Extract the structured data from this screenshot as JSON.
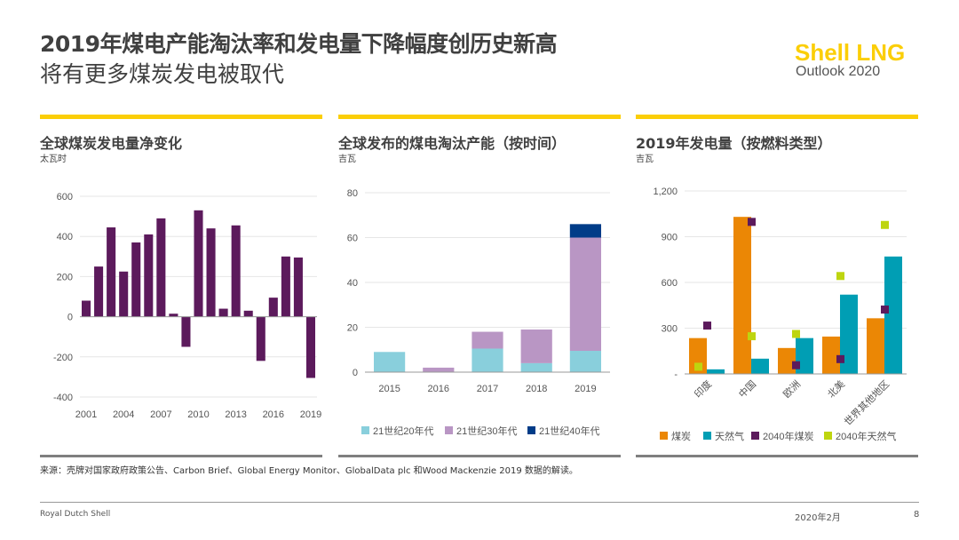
{
  "header": {
    "title": "2019年煤电产能淘汰率和发电量下降幅度创历史新高",
    "subtitle": "将有更多煤炭发电被取代",
    "logo_line1": "Shell LNG",
    "logo_line2": "Outlook 2020"
  },
  "colors": {
    "yellow": "#fbce07",
    "purple": "#5c1a5c",
    "orange": "#eb8705",
    "teal": "#009eb4",
    "lightblue": "#89cfdc",
    "lilac": "#b996c4",
    "navy": "#003c88",
    "lime": "#bed50f"
  },
  "chart_data": [
    {
      "type": "bar",
      "title": "全球煤炭发电量净变化",
      "unit": "太瓦时",
      "ylim": [
        -400,
        600
      ],
      "yticks": [
        "600",
        "400",
        "200",
        "0",
        "-200",
        "-400"
      ],
      "ytick_values": [
        600,
        400,
        200,
        0,
        -200,
        -400
      ],
      "categories": [
        "2001",
        "2002",
        "2003",
        "2004",
        "2005",
        "2006",
        "2007",
        "2008",
        "2009",
        "2010",
        "2011",
        "2012",
        "2013",
        "2014",
        "2015",
        "2016",
        "2017",
        "2018",
        "2019"
      ],
      "xtick_labels": [
        "2001",
        "2004",
        "2007",
        "2010",
        "2013",
        "2016",
        "2019"
      ],
      "values": [
        80,
        250,
        445,
        225,
        370,
        410,
        490,
        15,
        -150,
        530,
        440,
        40,
        455,
        30,
        -220,
        95,
        300,
        295,
        -305
      ],
      "grid": true
    },
    {
      "type": "bar",
      "stacked": true,
      "title": "全球发布的煤电淘汰产能（按时间）",
      "unit": "吉瓦",
      "ylim": [
        0,
        80
      ],
      "yticks": [
        "80",
        "60",
        "40",
        "20",
        "0"
      ],
      "ytick_values": [
        80,
        60,
        40,
        20,
        0
      ],
      "categories": [
        "2015",
        "2016",
        "2017",
        "2018",
        "2019"
      ],
      "series": [
        {
          "name": "21世纪20年代",
          "values": [
            9,
            0,
            10.5,
            4,
            9.5
          ]
        },
        {
          "name": "21世纪30年代",
          "values": [
            0,
            2,
            7.5,
            15,
            50.5
          ]
        },
        {
          "name": "21世纪40年代",
          "values": [
            0,
            0,
            0,
            0,
            6
          ]
        }
      ],
      "legend": "bottom"
    },
    {
      "type": "bar",
      "title": "2019年发电量（按燃料类型）",
      "unit": "吉瓦",
      "ylim": [
        0,
        1200
      ],
      "yticks": [
        "1,200",
        "900",
        "600",
        "300",
        "-"
      ],
      "ytick_values": [
        1200,
        900,
        600,
        300,
        0
      ],
      "categories": [
        "印度",
        "中国",
        "欧洲",
        "北美",
        "世界其他地区"
      ],
      "series": [
        {
          "name": "煤炭",
          "kind": "bar",
          "values": [
            235,
            1030,
            170,
            245,
            365
          ]
        },
        {
          "name": "天然气",
          "kind": "bar",
          "values": [
            30,
            100,
            235,
            520,
            770
          ]
        },
        {
          "name": "2040年煤炭",
          "kind": "marker",
          "values": [
            320,
            1000,
            60,
            100,
            425
          ]
        },
        {
          "name": "2040年天然气",
          "kind": "marker",
          "values": [
            50,
            250,
            265,
            645,
            980
          ]
        }
      ],
      "legend": "bottom"
    }
  ],
  "source": "来源：壳牌对国家政府政策公告、Carbon Brief、Global Energy Monitor、GlobalData plc 和Wood Mackenzie 2019 数据的解读。",
  "footer": {
    "company": "Royal Dutch Shell",
    "date": "2020年2月",
    "page": "8"
  }
}
